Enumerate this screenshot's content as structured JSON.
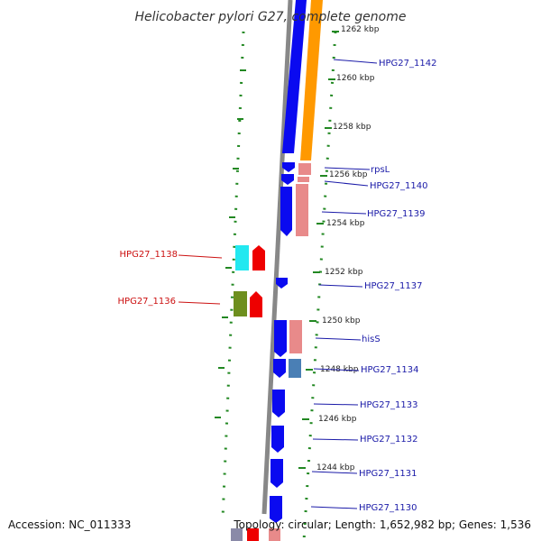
{
  "title": "Helicobacter pylori G27, complete genome",
  "footer": {
    "accession": "Accession: NC_011333",
    "summary": "Topology: circular; Length: 1,652,982 bp; Genes: 1,536"
  },
  "colors": {
    "forward_cds": "#0a0af0",
    "forward_orange": "#ff9900",
    "forward_pink": "#e88a8a",
    "reverse_red": "#ee0000",
    "reverse_cyan": "#22e8f0",
    "reverse_olive": "#6e8f1e",
    "steel_blue": "#4a7fb5",
    "backbone": "#888888",
    "ticks": "#228822",
    "label_right": "#1a1aa8",
    "label_left": "#cc1111"
  },
  "tick_labels": [
    "1262 kbp",
    "1260 kbp",
    "1258 kbp",
    "1256 kbp",
    "1254 kbp",
    "1252 kbp",
    "1250 kbp",
    "1248 kbp",
    "1246 kbp",
    "1244 kbp"
  ],
  "genes_right": [
    "HPG27_1142",
    "rpsL",
    "HPG27_1140",
    "HPG27_1139",
    "HPG27_1137",
    "hisS",
    "HPG27_1134",
    "HPG27_1133",
    "HPG27_1132",
    "HPG27_1131",
    "HPG27_1130"
  ],
  "genes_left": [
    "HPG27_1138",
    "HPG27_1136"
  ]
}
